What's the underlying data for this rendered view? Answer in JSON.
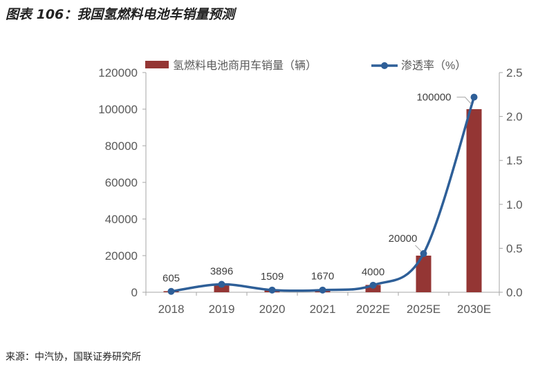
{
  "title": "图表 106：我国氢燃料电池车销量预测",
  "source": "来源：中汽协，国联证券研究所",
  "chart_data": {
    "type": "bar+line",
    "categories": [
      "2018",
      "2019",
      "2020",
      "2021",
      "2022E",
      "2025E",
      "2030E"
    ],
    "series": [
      {
        "name": "氢燃料电池商用车销量（辆）",
        "type": "bar",
        "axis": "left",
        "color": "#943634",
        "values": [
          605,
          3896,
          1509,
          1670,
          4000,
          20000,
          100000
        ],
        "labels": [
          "605",
          "3896",
          "1509",
          "1670",
          "4000",
          "20000",
          "100000"
        ]
      },
      {
        "name": "渗透率（%）",
        "type": "line",
        "axis": "right",
        "color": "#2E5F98",
        "values": [
          0.01,
          0.09,
          0.025,
          0.025,
          0.08,
          0.44,
          2.22
        ]
      }
    ],
    "ylim_left": [
      0,
      120000
    ],
    "yticks_left": [
      "0",
      "20000",
      "40000",
      "60000",
      "80000",
      "100000",
      "120000"
    ],
    "ylim_right": [
      0,
      2.5
    ],
    "yticks_right": [
      "0.0",
      "0.5",
      "1.0",
      "1.5",
      "2.0",
      "2.5"
    ],
    "legend": "top",
    "grid": false
  }
}
